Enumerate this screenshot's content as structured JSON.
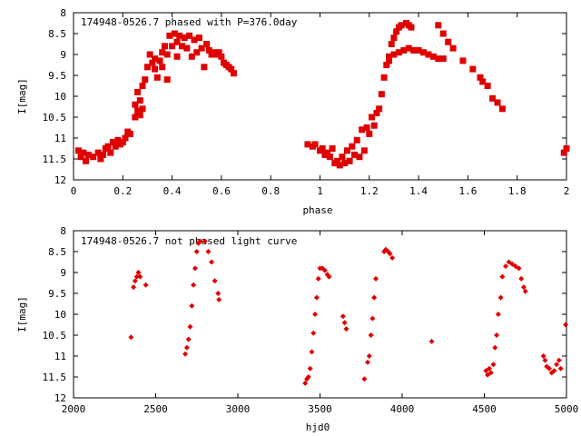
{
  "chart_data": [
    {
      "type": "scatter",
      "title": "174948-0526.7 phased with P=376.0day",
      "xlabel": "phase",
      "ylabel": "I[mag]",
      "xlim": [
        0,
        2
      ],
      "ylim": [
        12,
        8
      ],
      "y_inverted": true,
      "xticks": [
        "0",
        "0.2",
        "0.4",
        "0.6",
        "0.8",
        "1",
        "1.2",
        "1.4",
        "1.6",
        "1.8",
        "2"
      ],
      "yticks": [
        "8",
        "8.5",
        "9",
        "9.5",
        "10",
        "10.5",
        "11",
        "11.5",
        "12"
      ],
      "marker": "filled-square",
      "color": "#e00000",
      "points": [
        [
          0.02,
          11.3
        ],
        [
          0.03,
          11.45
        ],
        [
          0.04,
          11.35
        ],
        [
          0.05,
          11.55
        ],
        [
          0.06,
          11.4
        ],
        [
          0.08,
          11.45
        ],
        [
          0.1,
          11.35
        ],
        [
          0.11,
          11.5
        ],
        [
          0.12,
          11.4
        ],
        [
          0.13,
          11.25
        ],
        [
          0.14,
          11.2
        ],
        [
          0.15,
          11.35
        ],
        [
          0.16,
          11.1
        ],
        [
          0.17,
          11.2
        ],
        [
          0.18,
          11.05
        ],
        [
          0.19,
          11.15
        ],
        [
          0.2,
          11.1
        ],
        [
          0.21,
          11.0
        ],
        [
          0.22,
          10.85
        ],
        [
          0.23,
          10.9
        ],
        [
          0.25,
          10.5
        ],
        [
          0.25,
          10.2
        ],
        [
          0.26,
          10.35
        ],
        [
          0.26,
          9.9
        ],
        [
          0.27,
          10.1
        ],
        [
          0.27,
          10.45
        ],
        [
          0.28,
          10.3
        ],
        [
          0.28,
          9.75
        ],
        [
          0.29,
          9.6
        ],
        [
          0.3,
          9.3
        ],
        [
          0.31,
          9.0
        ],
        [
          0.32,
          9.2
        ],
        [
          0.33,
          9.1
        ],
        [
          0.33,
          9.35
        ],
        [
          0.34,
          9.55
        ],
        [
          0.35,
          9.15
        ],
        [
          0.36,
          8.95
        ],
        [
          0.36,
          9.3
        ],
        [
          0.37,
          8.8
        ],
        [
          0.38,
          9.0
        ],
        [
          0.38,
          9.6
        ],
        [
          0.39,
          8.55
        ],
        [
          0.4,
          8.8
        ],
        [
          0.41,
          8.5
        ],
        [
          0.42,
          8.7
        ],
        [
          0.42,
          9.05
        ],
        [
          0.43,
          8.55
        ],
        [
          0.44,
          8.8
        ],
        [
          0.45,
          8.6
        ],
        [
          0.46,
          8.85
        ],
        [
          0.47,
          8.55
        ],
        [
          0.48,
          9.05
        ],
        [
          0.49,
          8.65
        ],
        [
          0.5,
          8.95
        ],
        [
          0.51,
          8.6
        ],
        [
          0.52,
          8.85
        ],
        [
          0.53,
          9.3
        ],
        [
          0.54,
          8.75
        ],
        [
          0.55,
          8.9
        ],
        [
          0.56,
          9.0
        ],
        [
          0.57,
          8.95
        ],
        [
          0.58,
          9.0
        ],
        [
          0.59,
          8.95
        ],
        [
          0.6,
          9.05
        ],
        [
          0.61,
          9.2
        ],
        [
          0.62,
          9.25
        ],
        [
          0.63,
          9.3
        ],
        [
          0.64,
          9.35
        ],
        [
          0.65,
          9.45
        ],
        [
          0.95,
          11.15
        ],
        [
          0.97,
          11.2
        ],
        [
          0.98,
          11.15
        ],
        [
          1.0,
          11.3
        ],
        [
          1.01,
          11.25
        ],
        [
          1.02,
          11.4
        ],
        [
          1.03,
          11.35
        ],
        [
          1.04,
          11.45
        ],
        [
          1.05,
          11.25
        ],
        [
          1.06,
          11.6
        ],
        [
          1.07,
          11.55
        ],
        [
          1.08,
          11.65
        ],
        [
          1.09,
          11.45
        ],
        [
          1.1,
          11.6
        ],
        [
          1.11,
          11.3
        ],
        [
          1.12,
          11.55
        ],
        [
          1.13,
          11.2
        ],
        [
          1.14,
          11.4
        ],
        [
          1.15,
          11.05
        ],
        [
          1.16,
          11.45
        ],
        [
          1.17,
          10.8
        ],
        [
          1.18,
          11.3
        ],
        [
          1.19,
          10.75
        ],
        [
          1.2,
          10.9
        ],
        [
          1.21,
          10.5
        ],
        [
          1.22,
          10.7
        ],
        [
          1.23,
          10.4
        ],
        [
          1.24,
          10.3
        ],
        [
          1.25,
          9.95
        ],
        [
          1.26,
          9.55
        ],
        [
          1.27,
          9.25
        ],
        [
          1.28,
          9.05
        ],
        [
          1.29,
          8.75
        ],
        [
          1.3,
          8.6
        ],
        [
          1.31,
          8.45
        ],
        [
          1.32,
          8.35
        ],
        [
          1.33,
          8.3
        ],
        [
          1.35,
          8.25
        ],
        [
          1.36,
          8.3
        ],
        [
          1.37,
          8.35
        ],
        [
          1.28,
          9.15
        ],
        [
          1.3,
          9.0
        ],
        [
          1.32,
          8.95
        ],
        [
          1.34,
          8.9
        ],
        [
          1.36,
          8.85
        ],
        [
          1.38,
          8.9
        ],
        [
          1.4,
          8.9
        ],
        [
          1.42,
          8.95
        ],
        [
          1.44,
          9.0
        ],
        [
          1.46,
          9.05
        ],
        [
          1.48,
          9.1
        ],
        [
          1.5,
          9.1
        ],
        [
          1.48,
          8.3
        ],
        [
          1.5,
          8.5
        ],
        [
          1.52,
          8.7
        ],
        [
          1.54,
          8.85
        ],
        [
          1.58,
          9.15
        ],
        [
          1.62,
          9.35
        ],
        [
          1.65,
          9.55
        ],
        [
          1.66,
          9.65
        ],
        [
          1.68,
          9.75
        ],
        [
          1.7,
          10.05
        ],
        [
          1.72,
          10.15
        ],
        [
          1.74,
          10.3
        ],
        [
          1.99,
          11.35
        ],
        [
          2.0,
          11.25
        ]
      ]
    },
    {
      "type": "scatter",
      "title": "174948-0526.7 not phased light curve",
      "xlabel": "hjd0",
      "ylabel": "I[mag]",
      "xlim": [
        2000,
        5000
      ],
      "ylim": [
        12,
        8
      ],
      "y_inverted": true,
      "xticks": [
        "2000",
        "2500",
        "3000",
        "3500",
        "4000",
        "4500",
        "5000"
      ],
      "yticks": [
        "8",
        "8.5",
        "9",
        "9.5",
        "10",
        "10.5",
        "11",
        "11.5",
        "12"
      ],
      "marker": "filled-diamond",
      "color": "#e00000",
      "points": [
        [
          2350,
          10.55
        ],
        [
          2365,
          9.35
        ],
        [
          2375,
          9.2
        ],
        [
          2385,
          9.1
        ],
        [
          2395,
          9.0
        ],
        [
          2405,
          9.1
        ],
        [
          2440,
          9.3
        ],
        [
          2680,
          10.95
        ],
        [
          2690,
          10.8
        ],
        [
          2700,
          10.6
        ],
        [
          2710,
          10.3
        ],
        [
          2720,
          9.8
        ],
        [
          2730,
          9.3
        ],
        [
          2740,
          8.9
        ],
        [
          2750,
          8.5
        ],
        [
          2760,
          8.3
        ],
        [
          2770,
          8.25
        ],
        [
          2800,
          8.25
        ],
        [
          2820,
          8.5
        ],
        [
          2840,
          8.75
        ],
        [
          2860,
          9.2
        ],
        [
          2880,
          9.5
        ],
        [
          2885,
          9.65
        ],
        [
          3410,
          11.65
        ],
        [
          3420,
          11.55
        ],
        [
          3430,
          11.5
        ],
        [
          3440,
          11.3
        ],
        [
          3450,
          10.9
        ],
        [
          3460,
          10.45
        ],
        [
          3470,
          10.0
        ],
        [
          3480,
          9.6
        ],
        [
          3490,
          9.15
        ],
        [
          3500,
          8.9
        ],
        [
          3515,
          8.9
        ],
        [
          3530,
          8.95
        ],
        [
          3545,
          9.05
        ],
        [
          3555,
          9.1
        ],
        [
          3640,
          10.05
        ],
        [
          3650,
          10.2
        ],
        [
          3660,
          10.35
        ],
        [
          3770,
          11.55
        ],
        [
          3790,
          11.15
        ],
        [
          3800,
          11.0
        ],
        [
          3810,
          10.5
        ],
        [
          3820,
          10.1
        ],
        [
          3830,
          9.6
        ],
        [
          3840,
          9.15
        ],
        [
          3890,
          8.5
        ],
        [
          3900,
          8.45
        ],
        [
          3915,
          8.5
        ],
        [
          3925,
          8.55
        ],
        [
          3940,
          8.65
        ],
        [
          4180,
          10.65
        ],
        [
          4510,
          11.35
        ],
        [
          4520,
          11.45
        ],
        [
          4530,
          11.3
        ],
        [
          4540,
          11.4
        ],
        [
          4555,
          11.2
        ],
        [
          4565,
          10.8
        ],
        [
          4575,
          10.5
        ],
        [
          4585,
          10.0
        ],
        [
          4600,
          9.6
        ],
        [
          4610,
          9.1
        ],
        [
          4630,
          8.85
        ],
        [
          4650,
          8.75
        ],
        [
          4670,
          8.8
        ],
        [
          4690,
          8.85
        ],
        [
          4710,
          8.9
        ],
        [
          4725,
          9.15
        ],
        [
          4740,
          9.35
        ],
        [
          4750,
          9.45
        ],
        [
          4860,
          11.0
        ],
        [
          4870,
          11.1
        ],
        [
          4880,
          11.25
        ],
        [
          4895,
          11.3
        ],
        [
          4910,
          11.4
        ],
        [
          4925,
          11.35
        ],
        [
          4940,
          11.2
        ],
        [
          4955,
          11.1
        ],
        [
          4965,
          11.3
        ],
        [
          4995,
          10.25
        ]
      ]
    }
  ]
}
